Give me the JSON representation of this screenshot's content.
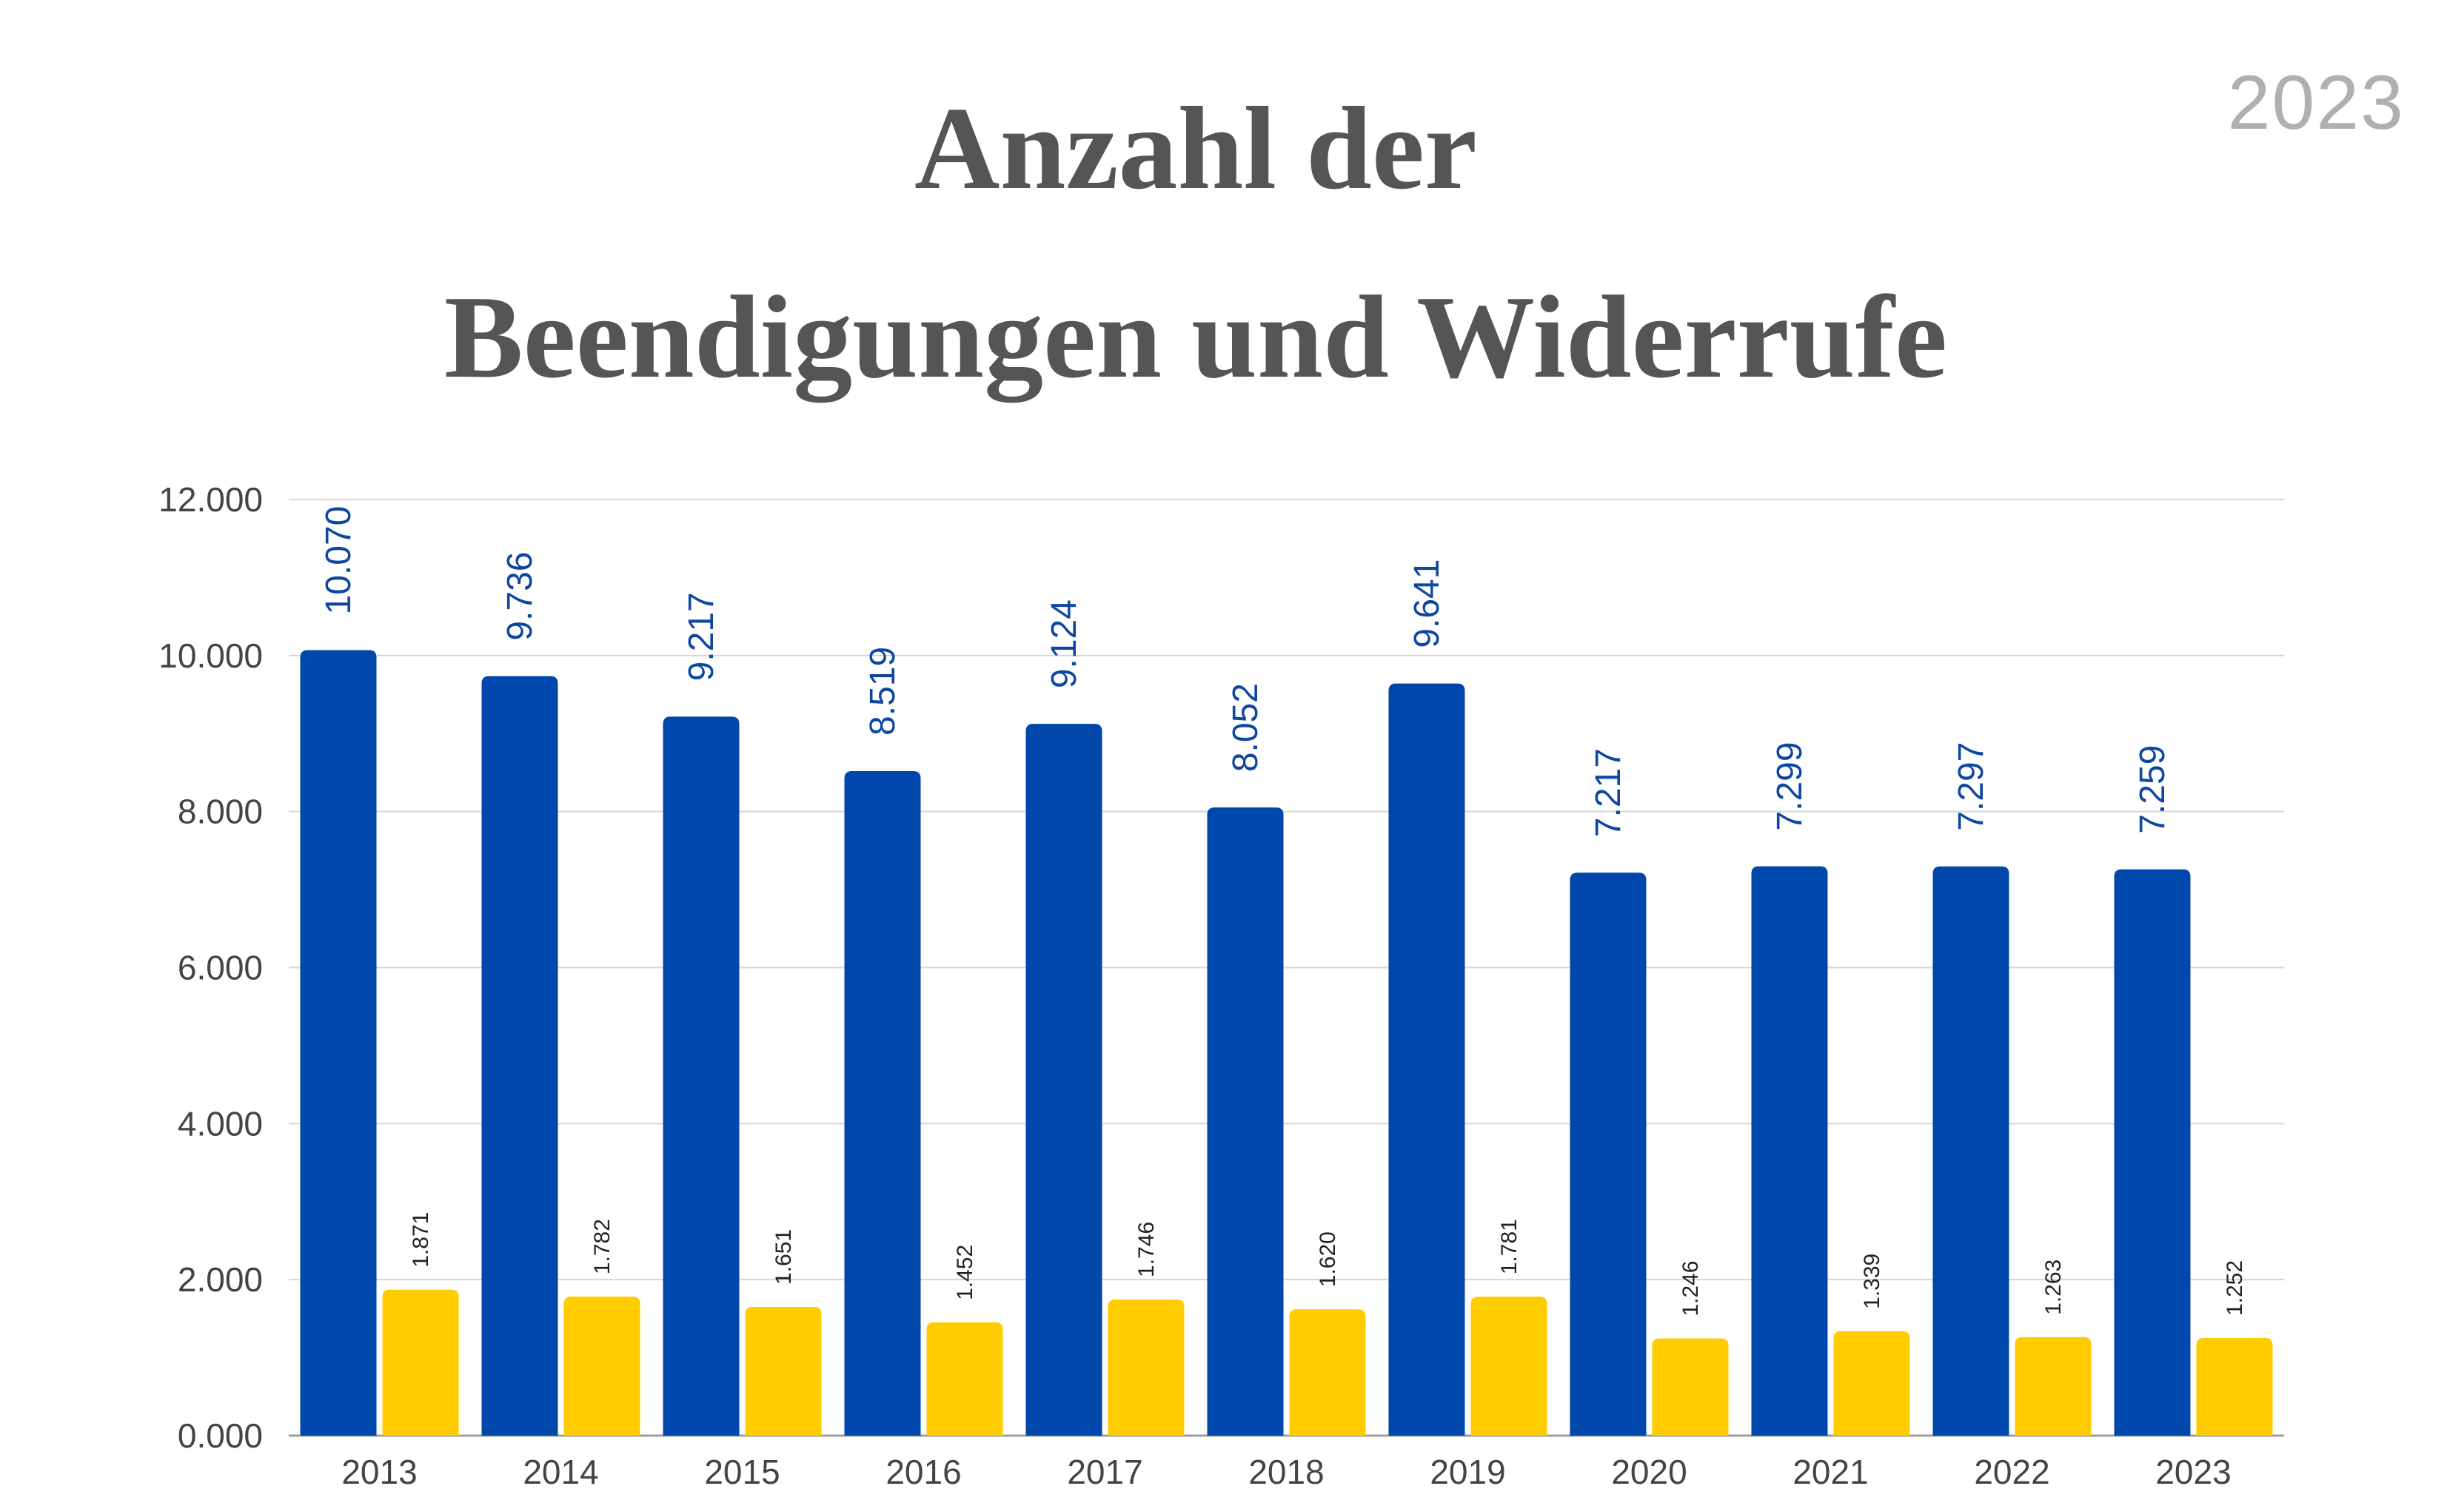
{
  "header": {
    "year_tag": "2023",
    "title_line1": "Anzahl der",
    "title_line2": "Beendigungen und Widerrufe"
  },
  "colors": {
    "series_1": "#0047ab",
    "series_2": "#ffcc00",
    "grid": "#d6d6d6",
    "title": "#555555"
  },
  "chart_data": {
    "type": "bar",
    "title": "Anzahl der Beendigungen und Widerrufe",
    "xlabel": "",
    "ylabel": "",
    "ylim": [
      0,
      12000
    ],
    "yticks": [
      0,
      2000,
      4000,
      6000,
      8000,
      10000,
      12000
    ],
    "ytick_labels": [
      "0.000",
      "2.000",
      "4.000",
      "6.000",
      "8.000",
      "10.000",
      "12.000"
    ],
    "grid": true,
    "categories": [
      "2013",
      "2014",
      "2015",
      "2016",
      "2017",
      "2018",
      "2019",
      "2020",
      "2021",
      "2022",
      "2023"
    ],
    "series": [
      {
        "values": [
          10070,
          9736,
          9217,
          8519,
          9124,
          8052,
          9641,
          7217,
          7299,
          7297,
          7259
        ],
        "labels": [
          "10.070",
          "9.736",
          "9.217",
          "8.519",
          "9.124",
          "8.052",
          "9.641",
          "7.217",
          "7.299",
          "7.297",
          "7.259"
        ]
      },
      {
        "values": [
          1871,
          1782,
          1651,
          1452,
          1746,
          1620,
          1781,
          1246,
          1339,
          1263,
          1252
        ],
        "labels": [
          "1.871",
          "1.782",
          "1.651",
          "1.452",
          "1.746",
          "1.620",
          "1.781",
          "1.246",
          "1.339",
          "1.263",
          "1.252"
        ]
      }
    ]
  }
}
